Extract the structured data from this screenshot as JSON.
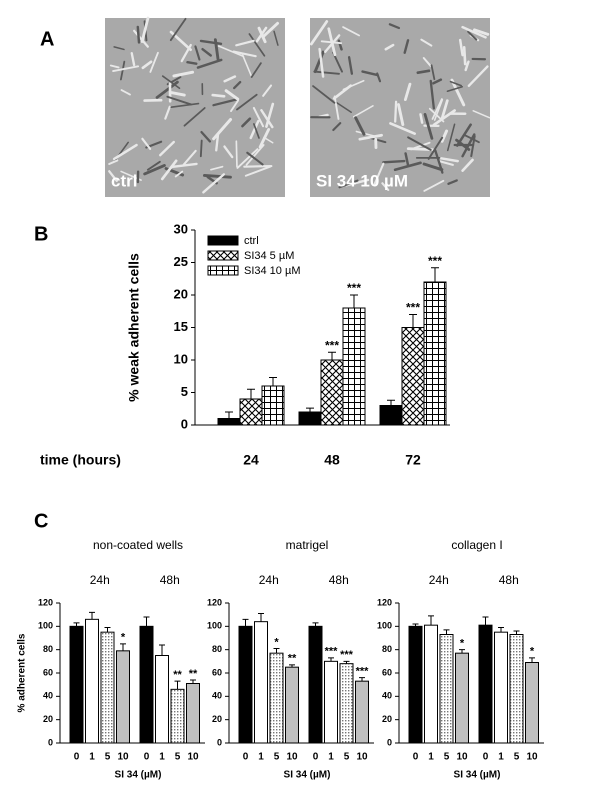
{
  "panel_labels": [
    "A",
    "B",
    "C"
  ],
  "images": [
    {
      "label": "ctrl"
    },
    {
      "label": "SI 34 10 µM"
    }
  ],
  "chart_data": [
    {
      "type": "bar",
      "ylabel": "% weak adherent cells",
      "xlabel": "time (hours)",
      "categories": [
        "24",
        "48",
        "72"
      ],
      "ylim": [
        0,
        30
      ],
      "yticks": [
        0,
        5,
        10,
        15,
        20,
        25,
        30
      ],
      "legend": "upper left",
      "series": [
        {
          "name": "ctrl",
          "color": "#000000",
          "values": [
            1,
            2,
            3
          ],
          "errors": [
            1,
            0.6,
            0.8
          ]
        },
        {
          "name": "SI34 5 µM",
          "color": "#000000",
          "pattern": "crosshatch",
          "values": [
            4,
            10,
            15
          ],
          "errors": [
            1.5,
            1.2,
            2
          ],
          "significance": [
            null,
            "***",
            "***"
          ]
        },
        {
          "name": "SI34 10 µM",
          "color": "#000000",
          "pattern": "grid",
          "values": [
            6,
            18,
            22
          ],
          "errors": [
            1.3,
            2,
            2.2
          ],
          "significance": [
            null,
            "***",
            "***"
          ]
        }
      ]
    },
    {
      "type": "grouped-bar",
      "title": "non-coated wells",
      "ylabel": "% adherent cells",
      "xlabel": "SI 34 (µM)",
      "categories": [
        "0",
        "1",
        "5",
        "10"
      ],
      "styles": [
        {
          "color": "#000000"
        },
        {
          "color": "#ffffff"
        },
        {
          "color": "#ffffff",
          "pattern": "dots"
        },
        {
          "color": "#c0c0c0"
        }
      ],
      "ylim": [
        0,
        120
      ],
      "yticks": [
        0,
        20,
        40,
        60,
        80,
        100,
        120
      ],
      "groups": [
        {
          "label": "24h",
          "values": [
            100,
            106,
            95,
            79
          ],
          "errors": [
            3,
            6,
            4,
            6
          ],
          "significance": [
            null,
            null,
            null,
            "*"
          ]
        },
        {
          "label": "48h",
          "values": [
            100,
            75,
            46,
            51
          ],
          "errors": [
            8,
            9,
            7,
            3
          ],
          "significance": [
            null,
            null,
            "**",
            "**"
          ]
        }
      ]
    },
    {
      "type": "grouped-bar",
      "title": "matrigel",
      "xlabel": "SI 34 (µM)",
      "categories": [
        "0",
        "1",
        "5",
        "10"
      ],
      "styles": [
        {
          "color": "#000000"
        },
        {
          "color": "#ffffff"
        },
        {
          "color": "#ffffff",
          "pattern": "dots"
        },
        {
          "color": "#c0c0c0"
        }
      ],
      "ylim": [
        0,
        120
      ],
      "yticks": [
        0,
        20,
        40,
        60,
        80,
        100,
        120
      ],
      "groups": [
        {
          "label": "24h",
          "values": [
            100,
            104,
            77,
            65
          ],
          "errors": [
            6,
            7,
            4,
            2
          ],
          "significance": [
            null,
            null,
            "*",
            "**"
          ]
        },
        {
          "label": "48h",
          "values": [
            100,
            70,
            68,
            53
          ],
          "errors": [
            3,
            3,
            2,
            3
          ],
          "significance": [
            null,
            "***",
            "***",
            "***"
          ]
        }
      ]
    },
    {
      "type": "grouped-bar",
      "title": "collagen I",
      "xlabel": "SI 34 (µM)",
      "categories": [
        "0",
        "1",
        "5",
        "10"
      ],
      "styles": [
        {
          "color": "#000000"
        },
        {
          "color": "#ffffff"
        },
        {
          "color": "#ffffff",
          "pattern": "dots"
        },
        {
          "color": "#c0c0c0"
        }
      ],
      "ylim": [
        0,
        120
      ],
      "yticks": [
        0,
        20,
        40,
        60,
        80,
        100,
        120
      ],
      "groups": [
        {
          "label": "24h",
          "values": [
            100,
            101,
            93,
            77
          ],
          "errors": [
            2,
            8,
            4,
            3
          ],
          "significance": [
            null,
            null,
            null,
            "*"
          ]
        },
        {
          "label": "48h",
          "values": [
            101,
            95,
            93,
            69
          ],
          "errors": [
            7,
            4,
            3,
            4
          ],
          "significance": [
            null,
            null,
            null,
            "*"
          ]
        }
      ]
    }
  ]
}
